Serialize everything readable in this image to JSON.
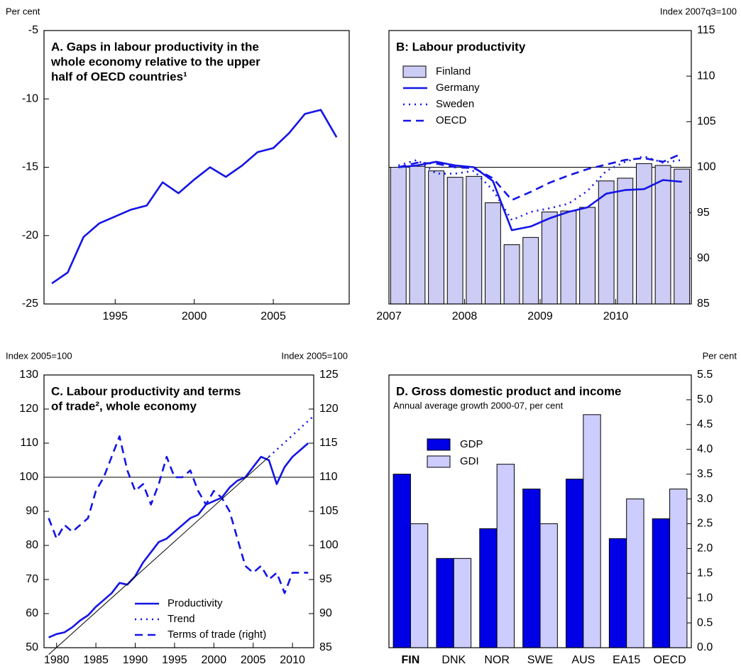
{
  "chart_data": [
    {
      "type": "line",
      "ylabel": "Per cent",
      "title": [
        "A. Gaps in labour productivity in the",
        "whole economy relative to the upper",
        "half of OECD countries¹"
      ],
      "xlim": [
        1990.5,
        2009.8
      ],
      "xticks": [
        1995,
        2000,
        2005
      ],
      "ylim": [
        -25,
        -5
      ],
      "yticks": [
        -25,
        -20,
        -15,
        -10,
        -5
      ],
      "x": [
        1991,
        1992,
        1993,
        1994,
        1995,
        1996,
        1997,
        1998,
        1999,
        2000,
        2001,
        2002,
        2003,
        2004,
        2005,
        2006,
        2007,
        2008,
        2009
      ],
      "series": [
        {
          "color": "#1414e6",
          "style": "solid",
          "values": [
            -23.5,
            -22.7,
            -20.1,
            -19.1,
            -18.6,
            -18.1,
            -17.8,
            -16.1,
            -16.9,
            -15.9,
            -15.0,
            -15.7,
            -14.9,
            -13.9,
            -13.6,
            -12.5,
            -11.1,
            -10.8,
            -12.8
          ]
        }
      ]
    },
    {
      "type": "combo",
      "ylabel": "Index 2007q3=100",
      "title": [
        "B: Labour productivity"
      ],
      "xlim": [
        2007,
        2011
      ],
      "xticks": [
        2007,
        2008,
        2009,
        2010
      ],
      "ylim": [
        85,
        115
      ],
      "yticks": [
        85,
        90,
        95,
        100,
        105,
        110,
        115
      ],
      "hline": 100,
      "x": [
        2007.125,
        2007.375,
        2007.625,
        2007.875,
        2008.125,
        2008.375,
        2008.625,
        2008.875,
        2009.125,
        2009.375,
        2009.625,
        2009.875,
        2010.125,
        2010.375,
        2010.625,
        2010.875
      ],
      "series": [
        {
          "name": "Finland",
          "color": "#ccccf5",
          "style": "bar",
          "values": [
            100,
            100.1,
            99.6,
            98.9,
            99.0,
            96.1,
            91.5,
            92.3,
            95.1,
            95.2,
            95.6,
            98.5,
            98.8,
            100.4,
            100.2,
            99.8
          ]
        },
        {
          "name": "Germany",
          "color": "#1414e6",
          "style": "solid",
          "values": [
            100,
            100.2,
            100.6,
            100.2,
            100,
            98.5,
            93.1,
            93.5,
            94.4,
            95.1,
            95.6,
            97.1,
            97.5,
            97.6,
            98.6,
            98.4
          ]
        },
        {
          "name": "Sweden",
          "color": "#1414e6",
          "style": "dotted",
          "values": [
            100.2,
            100.8,
            99.3,
            99.3,
            99.6,
            97.5,
            94.2,
            95.1,
            95.5,
            96.0,
            97.4,
            99.6,
            100.6,
            101.2,
            100.5,
            100.8
          ]
        },
        {
          "name": "OECD",
          "color": "#1414e6",
          "style": "dashed",
          "values": [
            100,
            100.5,
            100.4,
            100,
            99.9,
            98.8,
            96.4,
            97.3,
            98.3,
            99.1,
            99.8,
            100.3,
            100.8,
            101.0,
            100.6,
            101.5
          ]
        }
      ]
    },
    {
      "type": "line",
      "ylabel": "Index 2005=100",
      "y2label": "Index 2005=100",
      "title": [
        "C. Labour productivity and terms",
        "of trade², whole economy"
      ],
      "xlim": [
        1978.4,
        2012.7
      ],
      "xticks": [
        1980,
        1985,
        1990,
        1995,
        2000,
        2005,
        2010
      ],
      "ylim": [
        50,
        130
      ],
      "yticks": [
        50,
        60,
        70,
        80,
        90,
        100,
        110,
        120,
        130
      ],
      "y2lim": [
        85,
        125
      ],
      "y2ticks": [
        85,
        90,
        95,
        100,
        105,
        110,
        115,
        120,
        125
      ],
      "hline": 100,
      "series": [
        {
          "name": "Productivity",
          "color": "#1414e6",
          "style": "solid",
          "x": [
            1979,
            1980,
            1981,
            1982,
            1983,
            1984,
            1985,
            1986,
            1987,
            1988,
            1989,
            1990,
            1991,
            1992,
            1993,
            1994,
            1995,
            1996,
            1997,
            1998,
            1999,
            2000,
            2001,
            2002,
            2003,
            2004,
            2005,
            2006,
            2007,
            2008,
            2009,
            2010,
            2011,
            2012
          ],
          "values": [
            53,
            54,
            54.5,
            56,
            58,
            59.5,
            62,
            64,
            66,
            69,
            68.5,
            71,
            75,
            78,
            81,
            82,
            84,
            86,
            88,
            89,
            92,
            93,
            94,
            97,
            99,
            100,
            103,
            106,
            105,
            98,
            103,
            106,
            108,
            110
          ]
        },
        {
          "name": "Trend",
          "color": "#1414e6",
          "style": "dotted",
          "x": [
            2007,
            2012.7
          ],
          "values": [
            106,
            118
          ]
        },
        {
          "name": "Terms of trade (right)",
          "color": "#1414e6",
          "style": "dashed",
          "axis": "y2",
          "x": [
            1979,
            1980,
            1981,
            1982,
            1983,
            1984,
            1985,
            1986,
            1987,
            1988,
            1989,
            1990,
            1991,
            1992,
            1993,
            1994,
            1995,
            1996,
            1997,
            1998,
            1999,
            2000,
            2001,
            2002,
            2003,
            2004,
            2005,
            2006,
            2007,
            2008,
            2009,
            2010,
            2011,
            2012
          ],
          "values": [
            104,
            101,
            103,
            102,
            103,
            104,
            108,
            110,
            113,
            116,
            111,
            108,
            109,
            106,
            109,
            113,
            110,
            110,
            111,
            108,
            106,
            108,
            107,
            105,
            101,
            97,
            96,
            97,
            95,
            96,
            93,
            96,
            96,
            96
          ]
        },
        {
          "color": "#000000",
          "style": "thin",
          "x": [
            1979,
            2007
          ],
          "values": [
            48,
            106
          ]
        }
      ]
    },
    {
      "type": "bar",
      "ylabel": "Per cent",
      "title": [
        "D. Gross domestic product and income"
      ],
      "subtitle": "Annual average growth 2000-07, per cent",
      "categories": [
        "FIN",
        "DNK",
        "NOR",
        "SWE",
        "AUS",
        "EA15",
        "OECD"
      ],
      "ylim": [
        0,
        5.5
      ],
      "yticks": [
        {
          "value": 0,
          "label": "0.0"
        },
        0.5,
        {
          "value": 1,
          "label": "1.0"
        },
        1.5,
        {
          "value": 2,
          "label": "2.0"
        },
        2.5,
        {
          "value": 3,
          "label": "3.0"
        },
        3.5,
        {
          "value": 4,
          "label": "4.0"
        },
        4.5,
        {
          "value": 5,
          "label": "5.0"
        },
        5.5
      ],
      "series": [
        {
          "name": "GDP",
          "color": "#0000e6",
          "values": [
            3.5,
            1.8,
            2.4,
            3.2,
            3.4,
            2.2,
            2.6
          ]
        },
        {
          "name": "GDI",
          "color": "#ccccff",
          "values": [
            2.5,
            1.8,
            3.7,
            2.5,
            4.7,
            3.0,
            3.2
          ]
        }
      ]
    }
  ]
}
